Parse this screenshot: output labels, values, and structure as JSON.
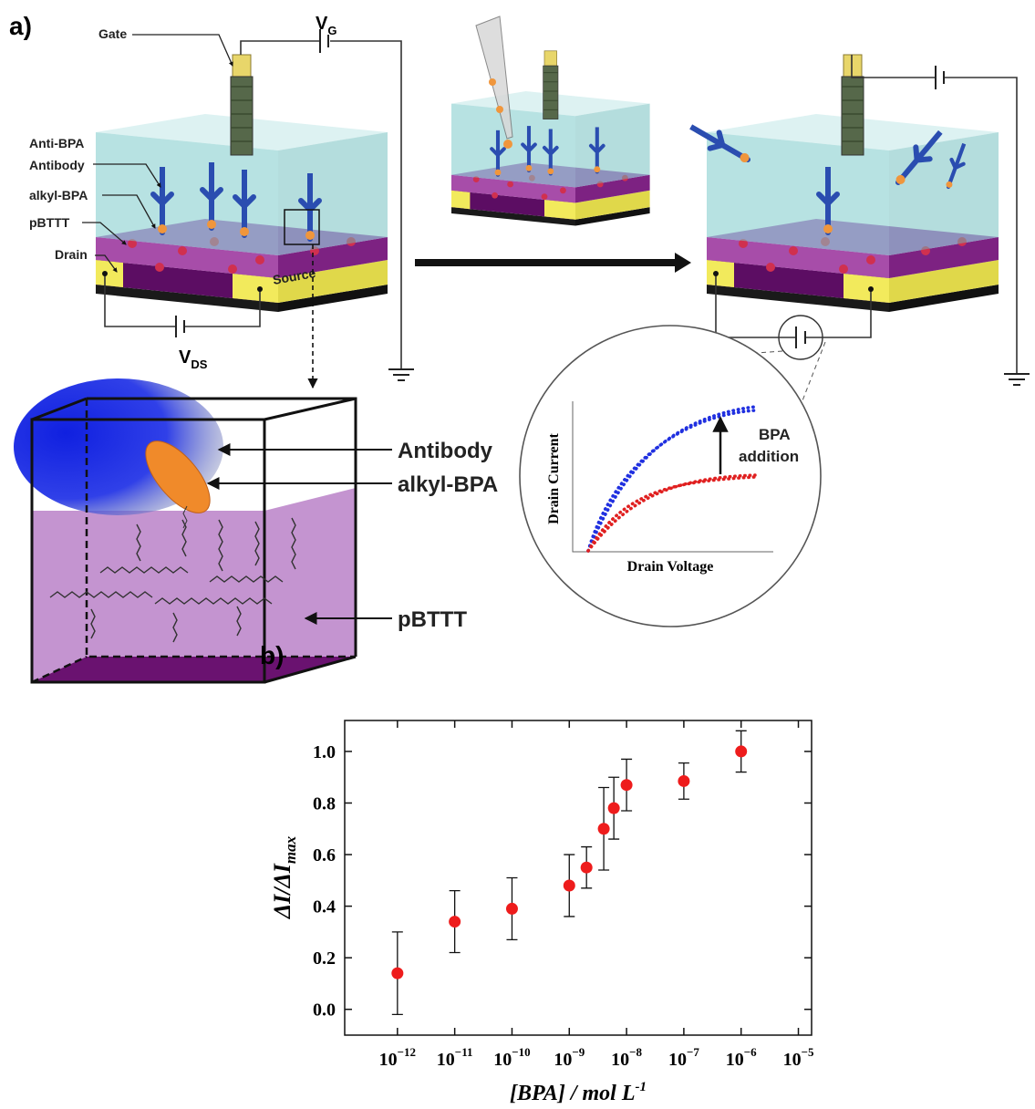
{
  "diagram": {
    "label": "a)",
    "gate": "Gate",
    "vg": {
      "main": "V",
      "sub": "G"
    },
    "vds": {
      "main": "V",
      "sub": "DS"
    },
    "left_labels": [
      "Anti-BPA",
      "Antibody",
      "alkyl-BPA",
      "pBTTT",
      "Drain"
    ],
    "source": "Source",
    "zoom_labels": [
      "Antibody",
      "alkyl-BPA",
      "pBTTT"
    ],
    "inset": {
      "ylabel": "Drain Current",
      "xlabel": "Drain Voltage",
      "annotation": [
        "BPA",
        "addition"
      ]
    }
  },
  "chart_data": {
    "type": "scatter",
    "label": "b)",
    "ylabel": {
      "main": "ΔI/ΔI",
      "sub": "max"
    },
    "xlabel": {
      "main": "[BPA] / mol L",
      "sup": "-1"
    },
    "xscale": "log",
    "x": [
      1e-12,
      1e-11,
      1e-10,
      1e-09,
      2e-09,
      4e-09,
      6e-09,
      1e-08,
      1e-07,
      1e-06
    ],
    "series": [
      {
        "color": "#ee1c1c",
        "values": [
          0.14,
          0.34,
          0.39,
          0.48,
          0.55,
          0.7,
          0.78,
          0.87,
          0.885,
          1.0
        ],
        "errors": [
          0.16,
          0.12,
          0.12,
          0.12,
          0.08,
          0.16,
          0.12,
          0.1,
          0.07,
          0.08
        ]
      }
    ],
    "xlim": [
      1.2e-13,
      1.7e-05
    ],
    "ylim": [
      -0.1,
      1.12
    ],
    "xticks": [
      {
        "value": 1e-12,
        "label": {
          "base": "10",
          "exp": "−12"
        }
      },
      {
        "value": 1e-11,
        "label": {
          "base": "10",
          "exp": "−11"
        }
      },
      {
        "value": 1e-10,
        "label": {
          "base": "10",
          "exp": "−10"
        }
      },
      {
        "value": 1e-09,
        "label": {
          "base": "10",
          "exp": "−9"
        }
      },
      {
        "value": 1e-08,
        "label": {
          "base": "10",
          "exp": "−8"
        }
      },
      {
        "value": 1e-07,
        "label": {
          "base": "10",
          "exp": "−7"
        }
      },
      {
        "value": 1e-06,
        "label": {
          "base": "10",
          "exp": "−6"
        }
      },
      {
        "value": 1e-05,
        "label": {
          "base": "10",
          "exp": "−5"
        }
      }
    ],
    "yticks": [
      {
        "value": 0,
        "label": "0.0"
      },
      0.2,
      0.4,
      0.6,
      0.8,
      {
        "value": 1,
        "label": "1.0"
      }
    ]
  }
}
